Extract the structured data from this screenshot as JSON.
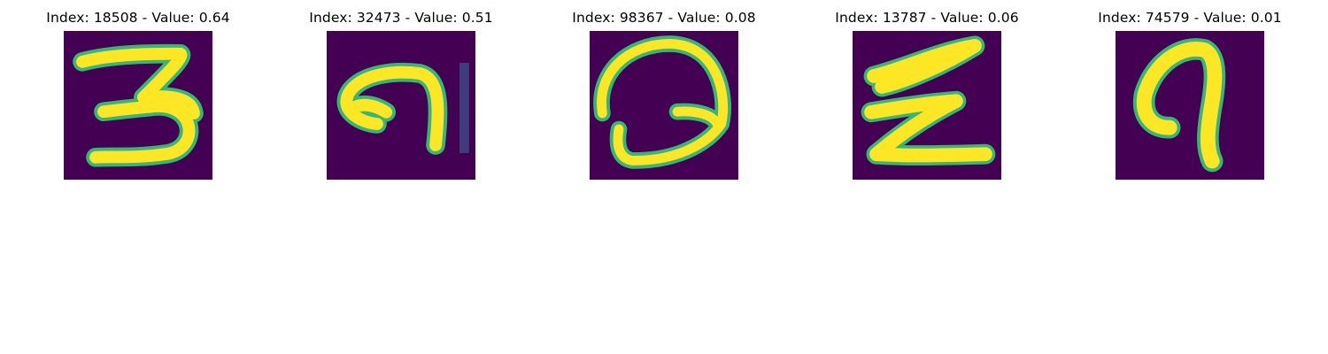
{
  "colors": {
    "background": "#440154",
    "stroke_core": "#fde725",
    "stroke_edge": "#35b779",
    "stroke_mid": "#21918c",
    "stroke_faint": "#3b528b"
  },
  "panels": [
    {
      "title": "Index: 18508 - Value: 0.64",
      "index": 18508,
      "value": 0.64,
      "depicted_glyph": "3"
    },
    {
      "title": "Index: 32473 - Value: 0.51",
      "index": 32473,
      "value": 0.51,
      "depicted_glyph": "9"
    },
    {
      "title": "Index: 98367 - Value: 0.08",
      "index": 98367,
      "value": 0.08,
      "depicted_glyph": "Q"
    },
    {
      "title": "Index: 13787 - Value: 0.06",
      "index": 13787,
      "value": 0.06,
      "depicted_glyph": "Z"
    },
    {
      "title": "Index: 74579 - Value: 0.01",
      "index": 74579,
      "value": 0.01,
      "depicted_glyph": "7"
    }
  ]
}
